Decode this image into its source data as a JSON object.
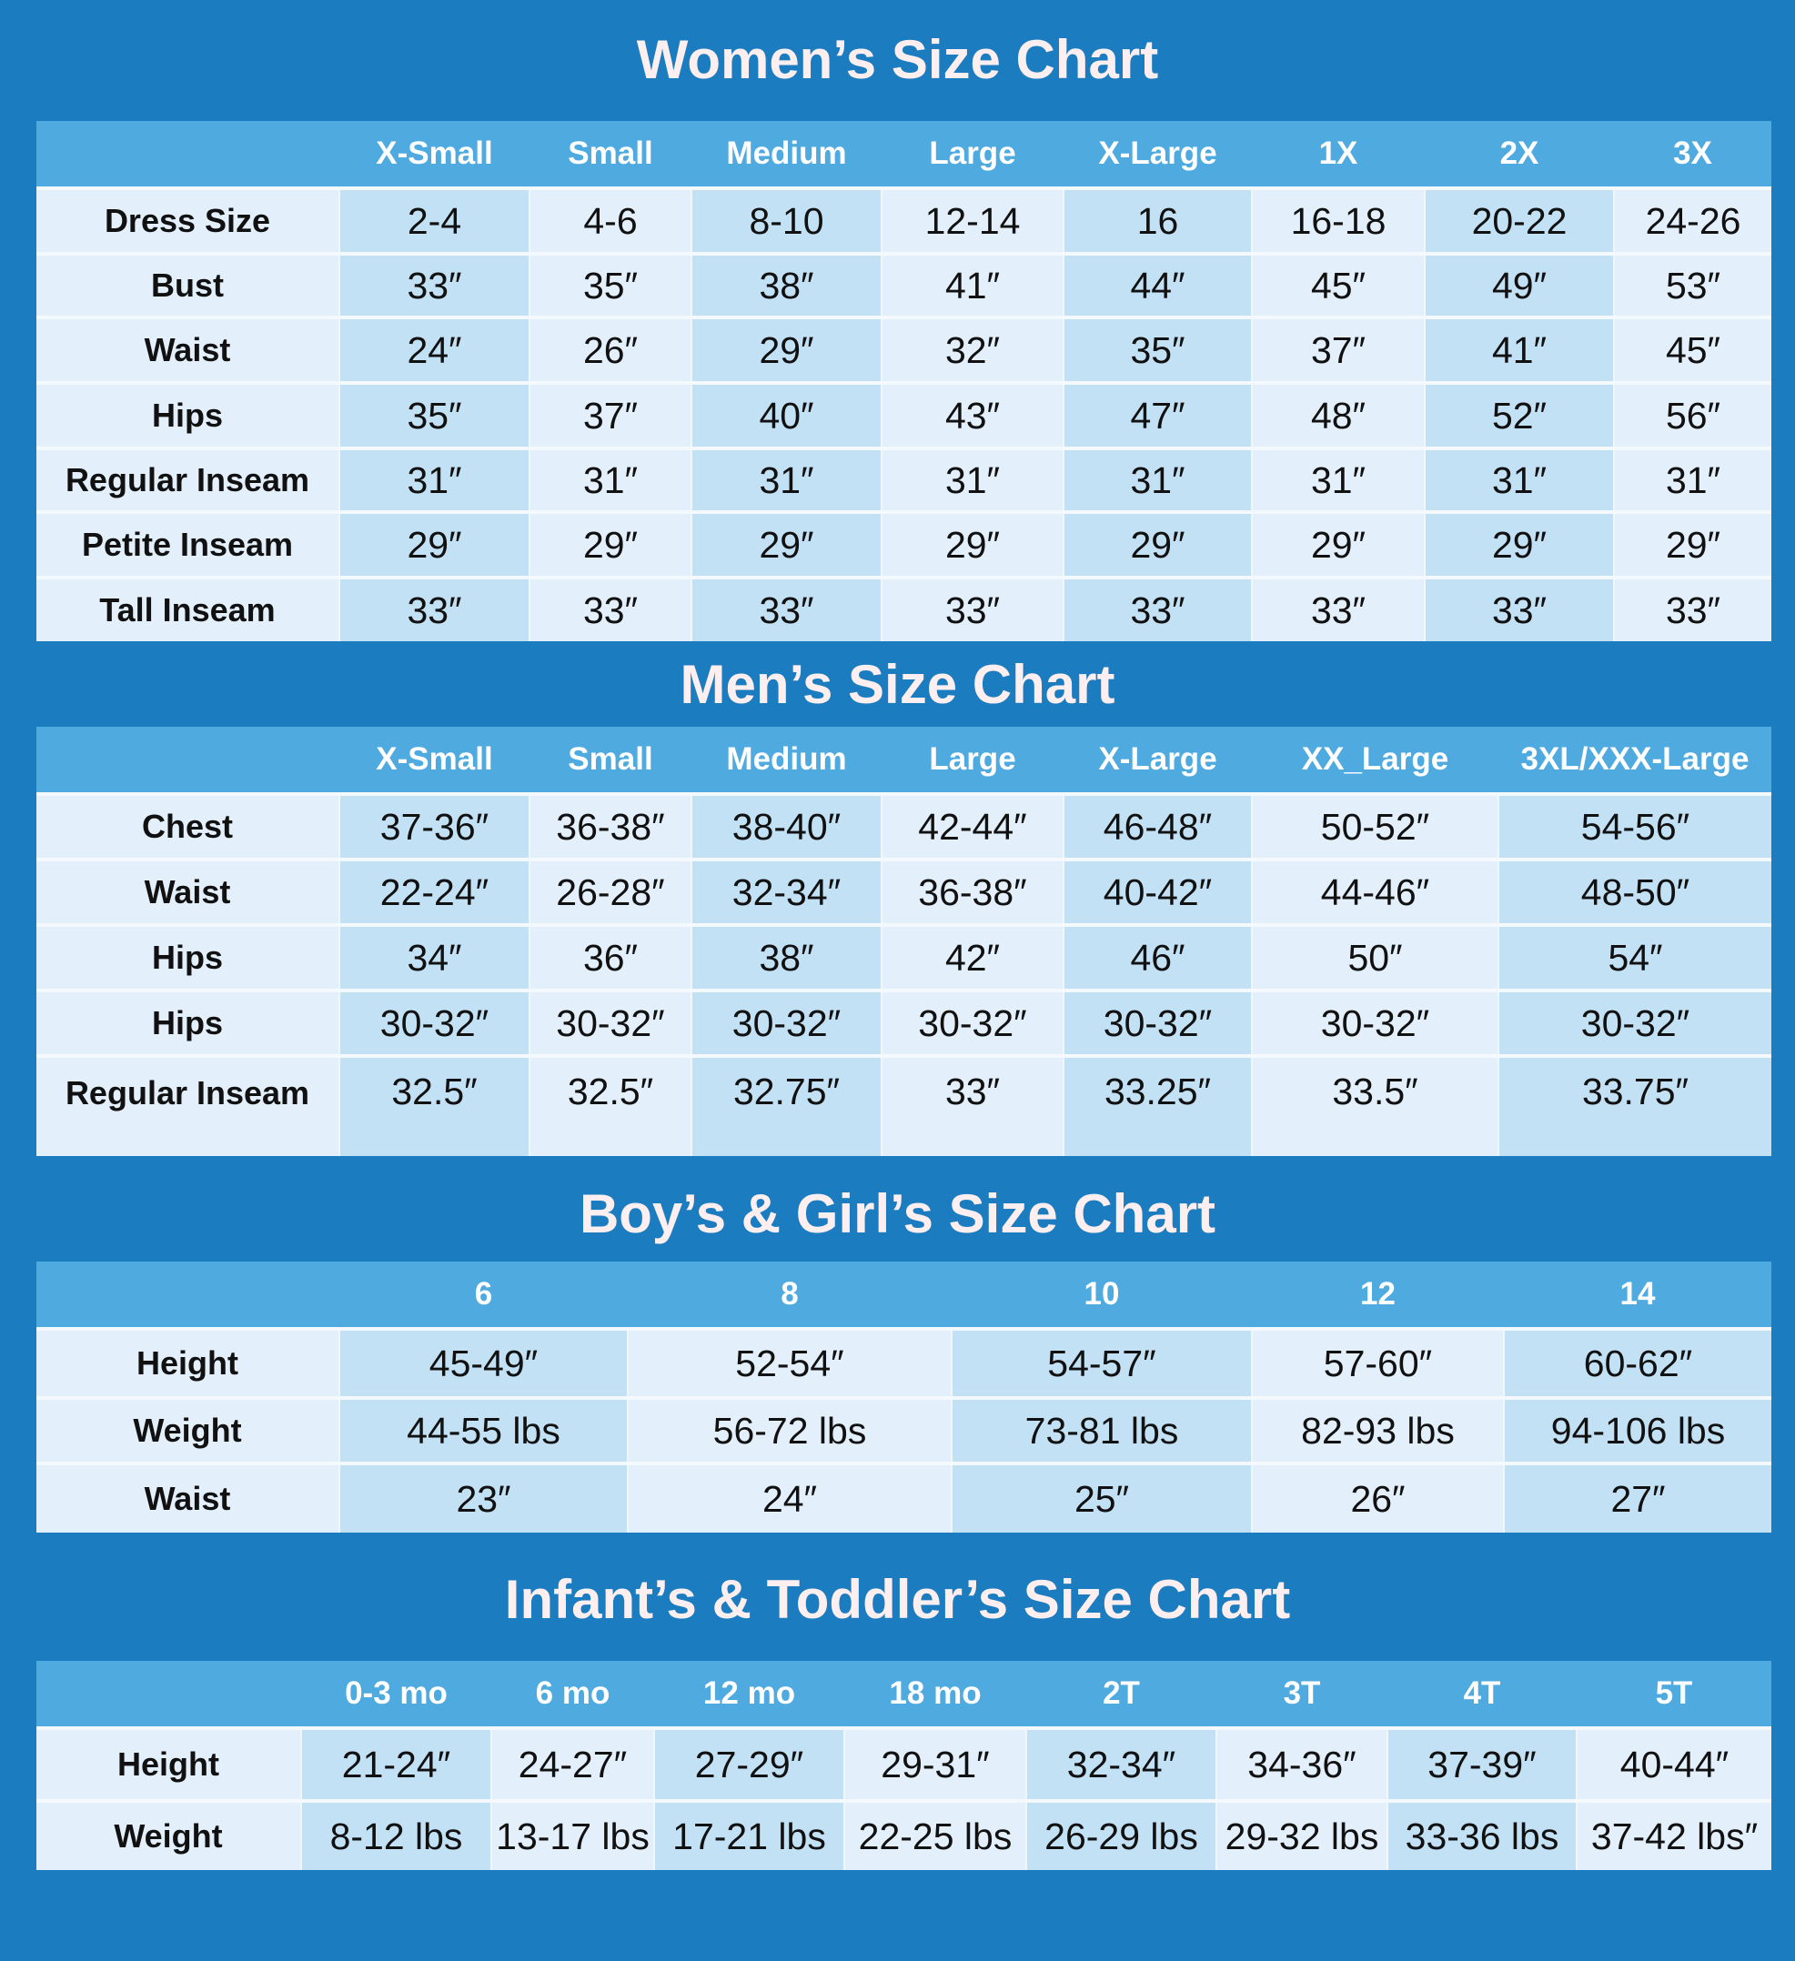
{
  "colors": {
    "background": "#1b7cc0",
    "header": "#4faae0",
    "cell_light": "#e3f0fb",
    "cell_blue": "#c3e1f5",
    "title": "#fdeef0"
  },
  "charts": [
    {
      "title": "Women’s Size Chart",
      "columns": [
        "X-Small",
        "Small",
        "Medium",
        "Large",
        "X-Large",
        "1X",
        "2X",
        "3X"
      ],
      "rows": [
        {
          "label": "Dress Size",
          "values": [
            "2-4",
            "4-6",
            "8-10",
            "12-14",
            "16",
            "16-18",
            "20-22",
            "24-26"
          ]
        },
        {
          "label": "Bust",
          "values": [
            "33″",
            "35″",
            "38″",
            "41″",
            "44″",
            "45″",
            "49″",
            "53″"
          ]
        },
        {
          "label": "Waist",
          "values": [
            "24″",
            "26″",
            "29″",
            "32″",
            "35″",
            "37″",
            "41″",
            "45″"
          ]
        },
        {
          "label": "Hips",
          "values": [
            "35″",
            "37″",
            "40″",
            "43″",
            "47″",
            "48″",
            "52″",
            "56″"
          ]
        },
        {
          "label": "Regular Inseam",
          "values": [
            "31″",
            "31″",
            "31″",
            "31″",
            "31″",
            "31″",
            "31″",
            "31″"
          ]
        },
        {
          "label": "Petite Inseam",
          "values": [
            "29″",
            "29″",
            "29″",
            "29″",
            "29″",
            "29″",
            "29″",
            "29″"
          ]
        },
        {
          "label": "Tall Inseam",
          "values": [
            "33″",
            "33″",
            "33″",
            "33″",
            "33″",
            "33″",
            "33″",
            "33″"
          ]
        }
      ]
    },
    {
      "title": "Men’s Size Chart",
      "columns": [
        "X-Small",
        "Small",
        "Medium",
        "Large",
        "X-Large",
        "XX_Large",
        "3XL/XXX-Large"
      ],
      "rows": [
        {
          "label": "Chest",
          "values": [
            "37-36″",
            "36-38″",
            "38-40″",
            "42-44″",
            "46-48″",
            "50-52″",
            "54-56″"
          ]
        },
        {
          "label": "Waist",
          "values": [
            "22-24″",
            "26-28″",
            "32-34″",
            "36-38″",
            "40-42″",
            "44-46″",
            "48-50″"
          ]
        },
        {
          "label": "Hips",
          "values": [
            "34″",
            "36″",
            "38″",
            "42″",
            "46″",
            "50″",
            "54″"
          ]
        },
        {
          "label": "Hips",
          "values": [
            "30-32″",
            "30-32″",
            "30-32″",
            "30-32″",
            "30-32″",
            "30-32″",
            "30-32″"
          ]
        },
        {
          "label": "Regular Inseam",
          "values": [
            "32.5″",
            "32.5″",
            "32.75″",
            "33″",
            "33.25″",
            "33.5″",
            "33.75″"
          ]
        }
      ]
    },
    {
      "title": "Boy’s & Girl’s Size Chart",
      "columns": [
        "6",
        "8",
        "10",
        "12",
        "14"
      ],
      "rows": [
        {
          "label": "Height",
          "values": [
            "45-49″",
            "52-54″",
            "54-57″",
            "57-60″",
            "60-62″"
          ]
        },
        {
          "label": "Weight",
          "values": [
            "44-55 lbs",
            "56-72 lbs",
            "73-81 lbs",
            "82-93 lbs",
            "94-106 lbs"
          ]
        },
        {
          "label": "Waist",
          "values": [
            "23″",
            "24″",
            "25″",
            "26″",
            "27″"
          ]
        }
      ]
    },
    {
      "title": "Infant’s & Toddler’s Size Chart",
      "columns": [
        "0-3 mo",
        "6 mo",
        "12 mo",
        "18 mo",
        "2T",
        "3T",
        "4T",
        "5T"
      ],
      "rows": [
        {
          "label": "Height",
          "values": [
            "21-24″",
            "24-27″",
            "27-29″",
            "29-31″",
            "32-34″",
            "34-36″",
            "37-39″",
            "40-44″"
          ]
        },
        {
          "label": "Weight",
          "values": [
            "8-12 lbs",
            "13-17 lbs",
            "17-21 lbs",
            "22-25 lbs",
            "26-29 lbs",
            "29-32 lbs",
            "33-36 lbs",
            "37-42 lbs″"
          ]
        }
      ]
    }
  ]
}
